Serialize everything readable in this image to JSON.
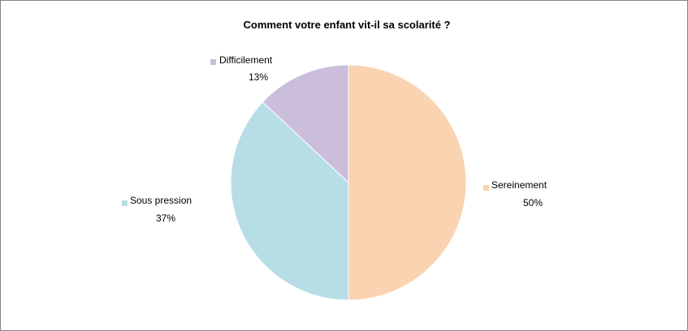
{
  "chart_data": {
    "type": "pie",
    "title": "Comment  votre enfant vit-il sa scolarité ?",
    "start_angle_deg": 0,
    "direction": "clockwise",
    "slices": [
      {
        "label": "Sereinement",
        "value": 50,
        "value_label": "50%",
        "color": "#FAD3B1"
      },
      {
        "label": "Sous pression",
        "value": 37,
        "value_label": "37%",
        "color": "#B7DDE7"
      },
      {
        "label": "Difficilement",
        "value": 13,
        "value_label": "13%",
        "color": "#CBBEDA"
      }
    ]
  },
  "colors": {
    "border": "#868686",
    "background": "#FFFFFF",
    "slice_edge": "#FFFFFF"
  }
}
